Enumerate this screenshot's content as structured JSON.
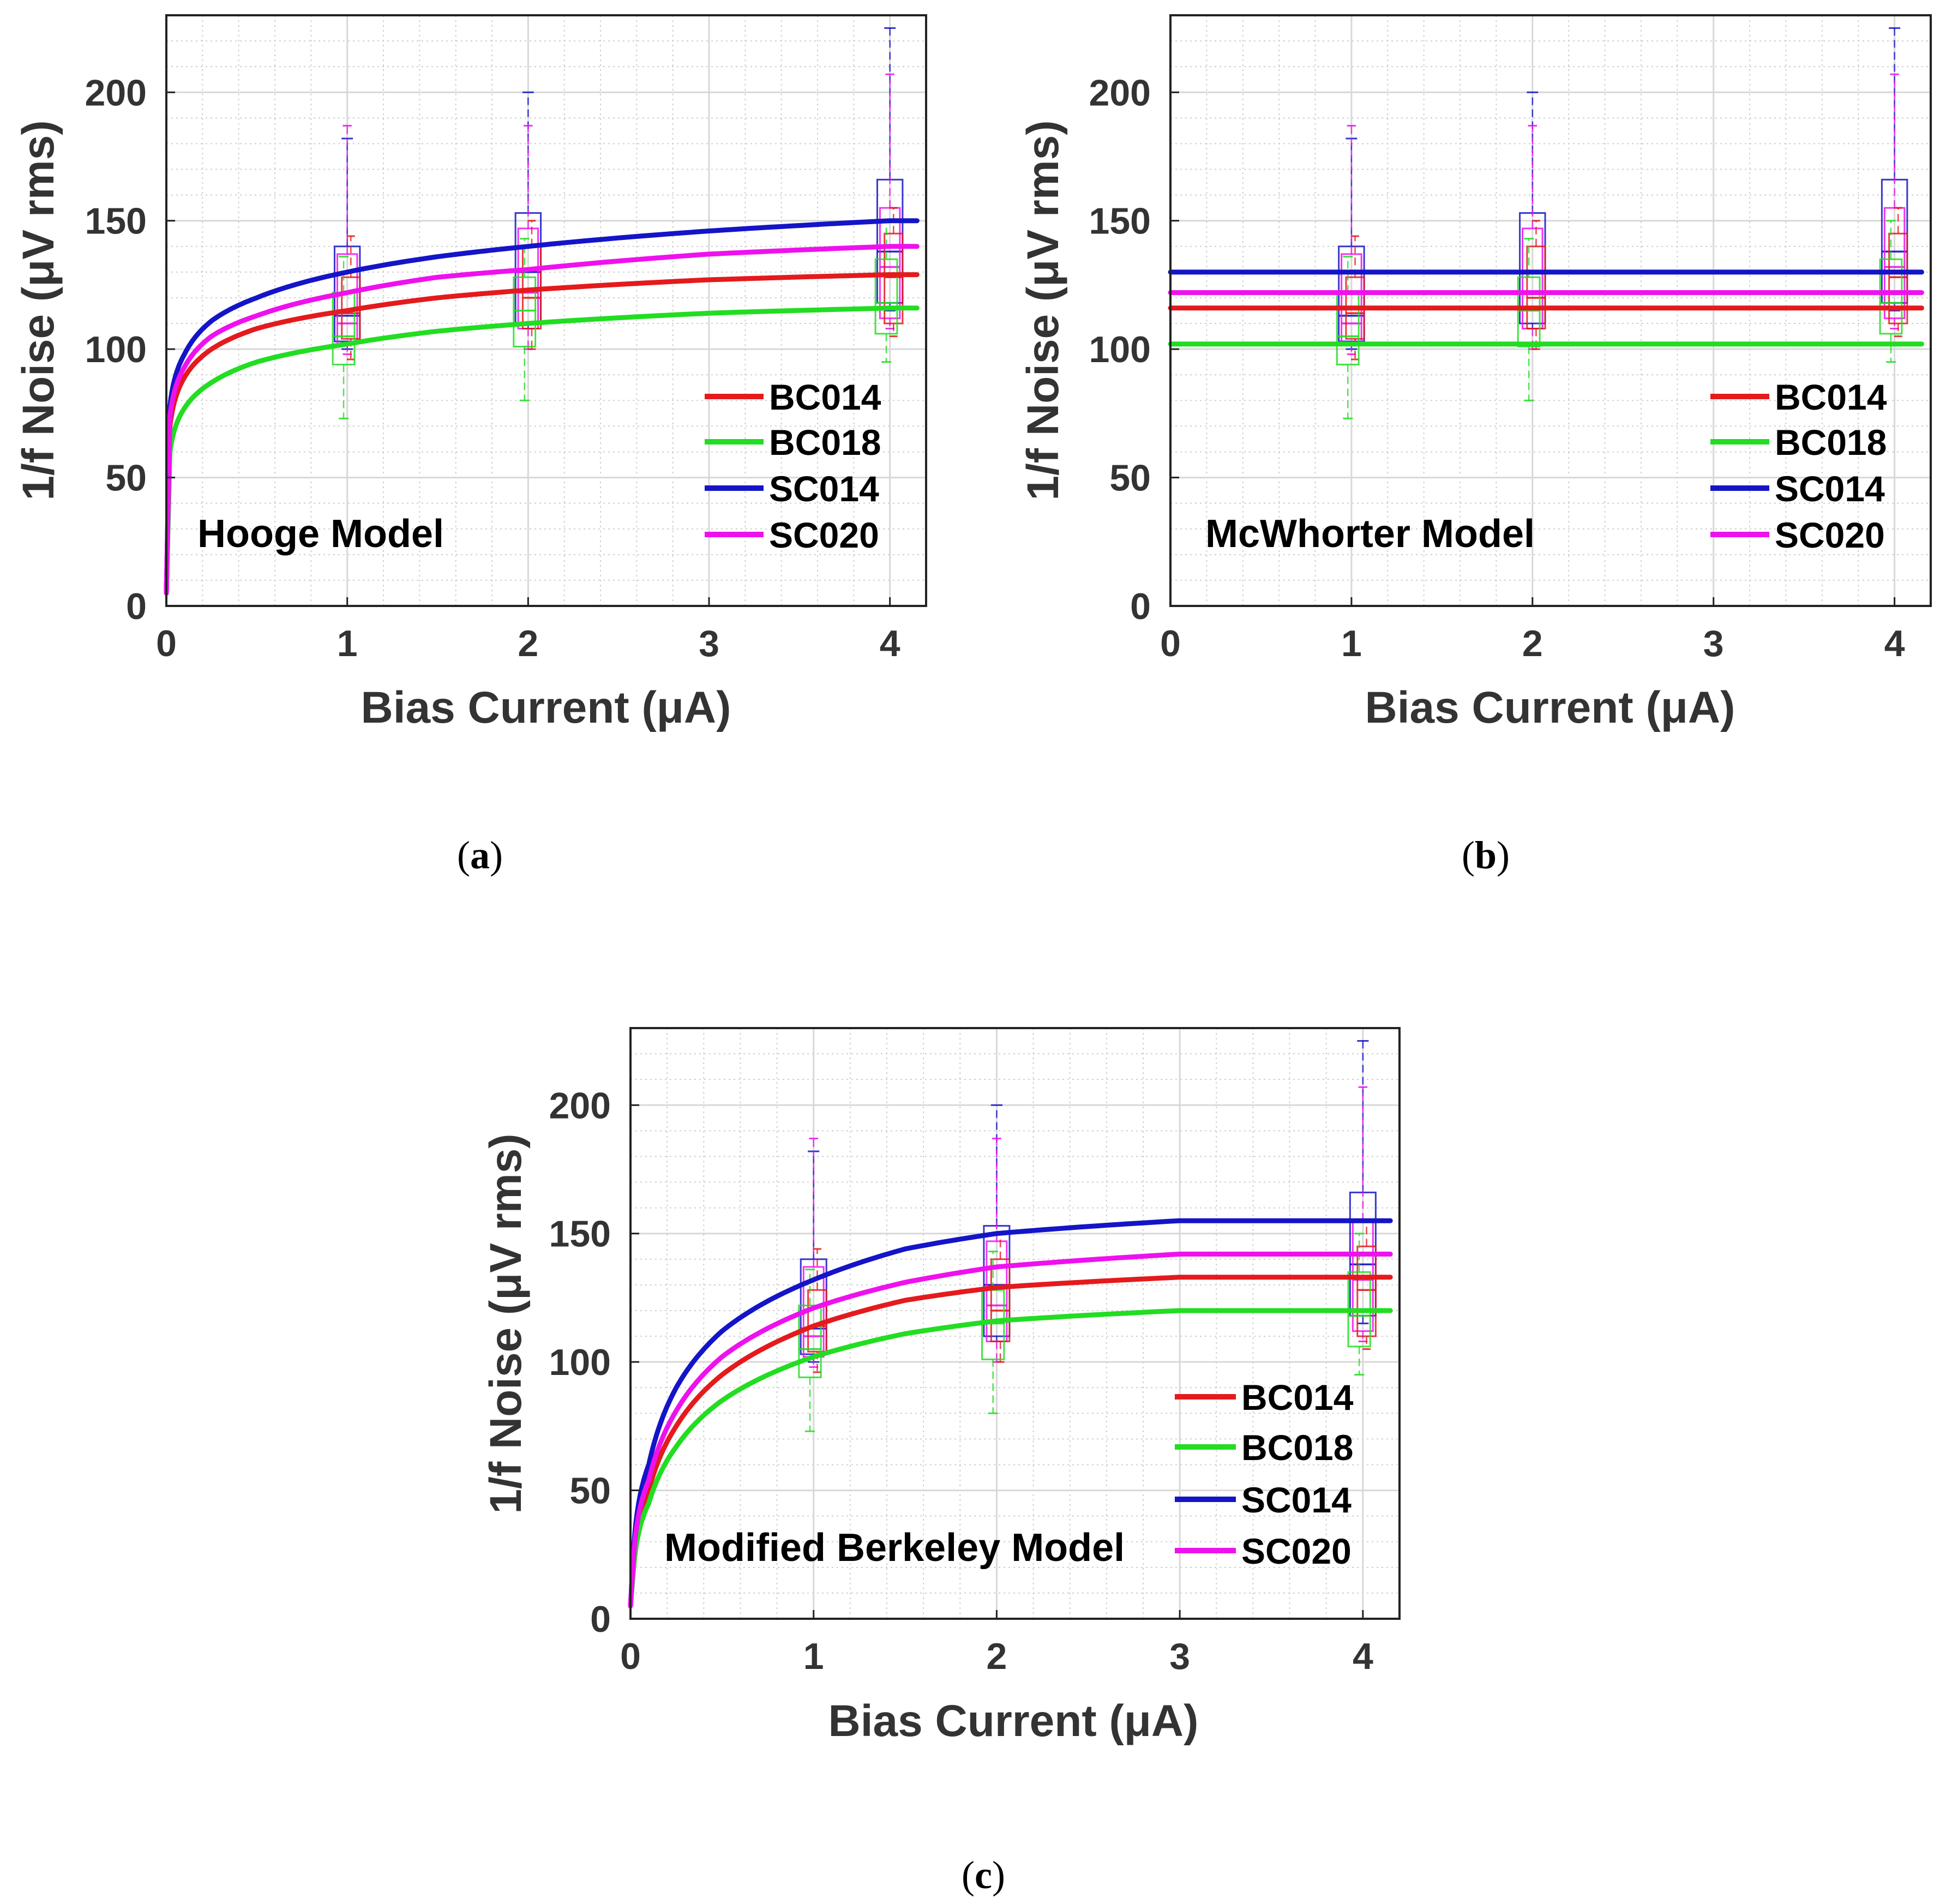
{
  "figure": {
    "series_colors": {
      "BC014": "#e41a1c",
      "BC018": "#22dd22",
      "SC014": "#1414c8",
      "SC020": "#ee11ee"
    },
    "legend": [
      "BC014",
      "BC018",
      "SC014",
      "SC020"
    ]
  },
  "chart_data": [
    {
      "type": "line",
      "panel_label": {
        "open": "(",
        "letter": "a",
        "close": ")"
      },
      "model_label": "Hooge Model",
      "xlabel": "Bias Current (μA)",
      "ylabel": "1/f Noise (μV rms)",
      "xlim": [
        0,
        4.2
      ],
      "ylim": [
        0,
        230
      ],
      "xticks": [
        0,
        1,
        2,
        3,
        4
      ],
      "yticks": [
        0,
        50,
        100,
        150,
        200
      ],
      "grid": true,
      "legend_position": "lower-right",
      "series": [
        {
          "name": "BC014",
          "x": [
            0.02,
            0.1,
            0.25,
            0.5,
            1,
            1.5,
            2,
            3,
            4,
            4.15
          ],
          "y": [
            70,
            89,
            100,
            108,
            115,
            120,
            123,
            127,
            129,
            129
          ]
        },
        {
          "name": "BC018",
          "x": [
            0.02,
            0.1,
            0.25,
            0.5,
            1,
            1.5,
            2,
            3,
            4,
            4.15
          ],
          "y": [
            60,
            77,
            87,
            95,
            102,
            107,
            110,
            114,
            116,
            116
          ]
        },
        {
          "name": "SC014",
          "x": [
            0.02,
            0.1,
            0.25,
            0.5,
            1,
            1.5,
            2,
            3,
            4,
            4.15
          ],
          "y": [
            78,
            98,
            111,
            120,
            130,
            136,
            140,
            146,
            150,
            150
          ]
        },
        {
          "name": "SC020",
          "x": [
            0.02,
            0.1,
            0.25,
            0.5,
            1,
            1.5,
            2,
            3,
            4,
            4.15
          ],
          "y": [
            74,
            93,
            105,
            113,
            122,
            128,
            131,
            137,
            140,
            140
          ]
        }
      ]
    },
    {
      "type": "line",
      "panel_label": {
        "open": "(",
        "letter": "b",
        "close": ")"
      },
      "model_label": "McWhorter Model",
      "xlabel": "Bias Current (μA)",
      "ylabel": "1/f Noise (μV rms)",
      "xlim": [
        0,
        4.2
      ],
      "ylim": [
        0,
        230
      ],
      "xticks": [
        0,
        1,
        2,
        3,
        4
      ],
      "yticks": [
        0,
        50,
        100,
        150,
        200
      ],
      "grid": true,
      "legend_position": "lower-right",
      "series": [
        {
          "name": "BC014",
          "x": [
            0,
            4.15
          ],
          "y": [
            116,
            116
          ]
        },
        {
          "name": "BC018",
          "x": [
            0,
            4.15
          ],
          "y": [
            102,
            102
          ]
        },
        {
          "name": "SC014",
          "x": [
            0,
            4.15
          ],
          "y": [
            130,
            130
          ]
        },
        {
          "name": "SC020",
          "x": [
            0,
            4.15
          ],
          "y": [
            122,
            122
          ]
        }
      ]
    },
    {
      "type": "line",
      "panel_label": {
        "open": "(",
        "letter": "c",
        "close": ")"
      },
      "model_label": "Modified Berkeley Model",
      "xlabel": "Bias Current (μA)",
      "ylabel": "1/f Noise (μV rms)",
      "xlim": [
        0,
        4.2
      ],
      "ylim": [
        0,
        230
      ],
      "xticks": [
        0,
        1,
        2,
        3,
        4
      ],
      "yticks": [
        0,
        50,
        100,
        150,
        200
      ],
      "grid": true,
      "legend_position": "lower-right",
      "series": [
        {
          "name": "BC014",
          "x": [
            0.02,
            0.1,
            0.25,
            0.5,
            1,
            1.5,
            2,
            3,
            4,
            4.15
          ],
          "y": [
            25,
            50,
            75,
            95,
            114,
            124,
            129,
            133,
            133,
            133
          ]
        },
        {
          "name": "BC018",
          "x": [
            0.02,
            0.1,
            0.25,
            0.5,
            1,
            1.5,
            2,
            3,
            4,
            4.15
          ],
          "y": [
            22,
            45,
            67,
            85,
            102,
            111,
            116,
            120,
            120,
            120
          ]
        },
        {
          "name": "SC014",
          "x": [
            0.02,
            0.1,
            0.25,
            0.5,
            1,
            1.5,
            2,
            3,
            4,
            4.15
          ],
          "y": [
            30,
            60,
            90,
            112,
            132,
            144,
            150,
            155,
            155,
            155
          ]
        },
        {
          "name": "SC020",
          "x": [
            0.02,
            0.1,
            0.25,
            0.5,
            1,
            1.5,
            2,
            3,
            4,
            4.15
          ],
          "y": [
            27,
            54,
            81,
            102,
            121,
            131,
            137,
            142,
            142,
            142
          ]
        }
      ]
    }
  ],
  "box_data": {
    "x_positions": [
      1,
      2,
      4
    ],
    "boxes": [
      {
        "name": "SC014",
        "x": 1,
        "whisker_low": 100,
        "q1": 103,
        "median": 113,
        "q3": 140,
        "whisker_high": 182
      },
      {
        "name": "SC020",
        "x": 1,
        "whisker_low": 98,
        "q1": 102,
        "median": 110,
        "q3": 137,
        "whisker_high": 187
      },
      {
        "name": "BC014",
        "x": 1,
        "whisker_low": 96,
        "q1": 104,
        "median": 114,
        "q3": 128,
        "whisker_high": 144
      },
      {
        "name": "BC018",
        "x": 1,
        "whisker_low": 73,
        "q1": 94,
        "median": 105,
        "q3": 122,
        "whisker_high": 136
      },
      {
        "name": "SC014",
        "x": 2,
        "whisker_low": 108,
        "q1": 110,
        "median": 130,
        "q3": 153,
        "whisker_high": 200
      },
      {
        "name": "SC020",
        "x": 2,
        "whisker_low": 100,
        "q1": 108,
        "median": 122,
        "q3": 147,
        "whisker_high": 187
      },
      {
        "name": "BC014",
        "x": 2,
        "whisker_low": 100,
        "q1": 108,
        "median": 120,
        "q3": 140,
        "whisker_high": 150
      },
      {
        "name": "BC018",
        "x": 2,
        "whisker_low": 80,
        "q1": 101,
        "median": 115,
        "q3": 128,
        "whisker_high": 143
      },
      {
        "name": "SC014",
        "x": 4,
        "whisker_low": 115,
        "q1": 118,
        "median": 138,
        "q3": 166,
        "whisker_high": 225
      },
      {
        "name": "SC020",
        "x": 4,
        "whisker_low": 108,
        "q1": 112,
        "median": 132,
        "q3": 155,
        "whisker_high": 207
      },
      {
        "name": "BC014",
        "x": 4,
        "whisker_low": 105,
        "q1": 110,
        "median": 128,
        "q3": 145,
        "whisker_high": 155
      },
      {
        "name": "BC018",
        "x": 4,
        "whisker_low": 95,
        "q1": 106,
        "median": 118,
        "q3": 135,
        "whisker_high": 150
      }
    ]
  }
}
